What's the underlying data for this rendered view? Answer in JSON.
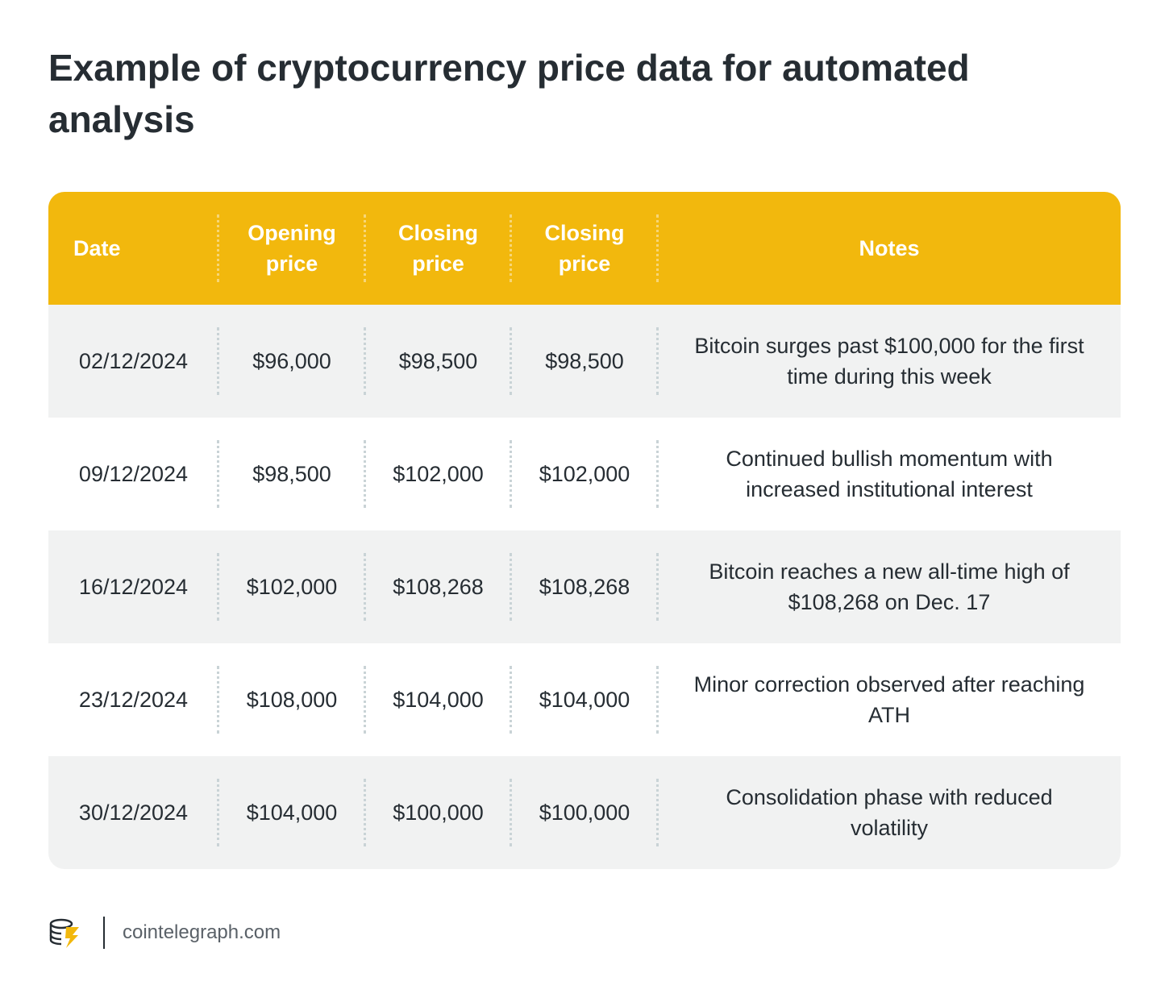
{
  "header": {
    "title": "Example of cryptocurrency price data for automated analysis"
  },
  "table": {
    "columns": [
      "Date",
      "Opening price",
      "Closing price",
      "Closing price",
      "Notes"
    ],
    "rows": [
      [
        "02/12/2024",
        "$96,000",
        "$98,500",
        "$98,500",
        "Bitcoin surges past $100,000 for the first time during this week"
      ],
      [
        "09/12/2024",
        "$98,500",
        "$102,000",
        "$102,000",
        "Continued bullish momentum with increased institutional interest"
      ],
      [
        "16/12/2024",
        "$102,000",
        "$108,268",
        "$108,268",
        "Bitcoin reaches a new all-time high of $108,268 on Dec. 17"
      ],
      [
        "23/12/2024",
        "$108,000",
        "$104,000",
        "$104,000",
        "Minor correction observed after reaching ATH"
      ],
      [
        "30/12/2024",
        "$104,000",
        "$100,000",
        "$100,000",
        "Consolidation phase with reduced volatility"
      ]
    ]
  },
  "footer": {
    "source": "cointelegraph.com"
  }
}
